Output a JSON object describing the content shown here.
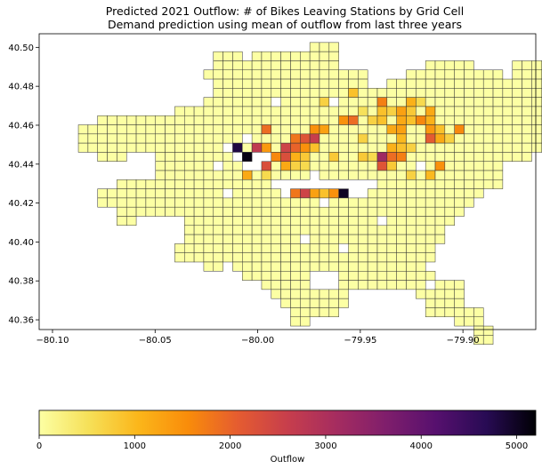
{
  "title_line1": "Predicted 2021 Outflow: # of Bikes Leaving Stations by Grid Cell",
  "title_line2": "Demand prediction using mean of outflow from last three years",
  "x_ticks": [
    "−80.10",
    "−80.05",
    "−80.00",
    "−79.95",
    "−79.90"
  ],
  "x_tick_values": [
    -80.1,
    -80.05,
    -80.0,
    -79.95,
    -79.9
  ],
  "y_ticks": [
    "40.50",
    "40.48",
    "40.46",
    "40.44",
    "40.42",
    "40.40",
    "40.38",
    "40.36"
  ],
  "y_tick_values": [
    40.5,
    40.48,
    40.46,
    40.44,
    40.42,
    40.4,
    40.38,
    40.36
  ],
  "xlim": [
    -80.1065,
    -79.8645
  ],
  "ylim": [
    40.355,
    40.507
  ],
  "colorbar": {
    "label": "Outflow",
    "colormap": "inferno_r",
    "range": [
      0,
      5200
    ],
    "ticks": [
      "0",
      "1000",
      "2000",
      "3000",
      "4000",
      "5000"
    ],
    "tick_values": [
      0,
      1000,
      2000,
      3000,
      4000,
      5000
    ]
  },
  "grid": {
    "cell_size_deg": 0.0047,
    "lon_start": -80.1015,
    "lat_top": 40.5025,
    "rows": [
      {
        "row": 0,
        "spans": [
          [
            27,
            29
          ]
        ]
      },
      {
        "row": 1,
        "spans": [
          [
            17,
            19
          ],
          [
            21,
            29
          ]
        ]
      },
      {
        "row": 2,
        "spans": [
          [
            17,
            29
          ],
          [
            39,
            43
          ],
          [
            48,
            52
          ]
        ]
      },
      {
        "row": 3,
        "spans": [
          [
            16,
            32
          ],
          [
            37,
            46
          ],
          [
            48,
            52
          ]
        ]
      },
      {
        "row": 4,
        "spans": [
          [
            17,
            32
          ],
          [
            35,
            52
          ]
        ]
      },
      {
        "row": 5,
        "spans": [
          [
            17,
            52
          ]
        ]
      },
      {
        "row": 6,
        "spans": [
          [
            16,
            52
          ]
        ]
      },
      {
        "row": 7,
        "spans": [
          [
            13,
            51
          ]
        ]
      },
      {
        "row": 8,
        "spans": [
          [
            5,
            52
          ],
          [
            54,
            55
          ]
        ]
      },
      {
        "row": 9,
        "spans": [
          [
            3,
            56
          ]
        ]
      },
      {
        "row": 10,
        "spans": [
          [
            3,
            56
          ]
        ]
      },
      {
        "row": 11,
        "spans": [
          [
            3,
            54
          ]
        ]
      },
      {
        "row": 12,
        "spans": [
          [
            5,
            7
          ],
          [
            11,
            49
          ]
        ]
      },
      {
        "row": 13,
        "spans": [
          [
            11,
            46
          ]
        ]
      },
      {
        "row": 14,
        "spans": [
          [
            11,
            46
          ]
        ]
      },
      {
        "row": 15,
        "spans": [
          [
            7,
            46
          ]
        ]
      },
      {
        "row": 16,
        "spans": [
          [
            5,
            44
          ]
        ]
      },
      {
        "row": 17,
        "spans": [
          [
            5,
            43
          ]
        ]
      },
      {
        "row": 18,
        "spans": [
          [
            7,
            42
          ]
        ]
      },
      {
        "row": 19,
        "spans": [
          [
            7,
            8
          ],
          [
            14,
            41
          ]
        ]
      },
      {
        "row": 20,
        "spans": [
          [
            14,
            40
          ]
        ]
      },
      {
        "row": 21,
        "spans": [
          [
            14,
            40
          ]
        ]
      },
      {
        "row": 22,
        "spans": [
          [
            13,
            39
          ]
        ]
      },
      {
        "row": 23,
        "spans": [
          [
            13,
            39
          ]
        ]
      },
      {
        "row": 24,
        "spans": [
          [
            16,
            38
          ]
        ]
      },
      {
        "row": 25,
        "spans": [
          [
            20,
            26
          ],
          [
            30,
            39
          ]
        ]
      },
      {
        "row": 26,
        "spans": [
          [
            22,
            26
          ],
          [
            30,
            38
          ],
          [
            40,
            42
          ]
        ]
      },
      {
        "row": 27,
        "spans": [
          [
            23,
            30
          ],
          [
            38,
            42
          ]
        ]
      },
      {
        "row": 28,
        "spans": [
          [
            24,
            30
          ],
          [
            39,
            42
          ]
        ]
      },
      {
        "row": 29,
        "spans": [
          [
            25,
            29
          ],
          [
            39,
            44
          ]
        ]
      },
      {
        "row": 30,
        "spans": [
          [
            25,
            26
          ],
          [
            42,
            44
          ]
        ]
      },
      {
        "row": 31,
        "spans": [
          [
            44,
            45
          ]
        ]
      },
      {
        "row": 32,
        "spans": [
          [
            44,
            45
          ]
        ]
      }
    ],
    "holes": [
      [
        13,
        17
      ],
      [
        14,
        27
      ],
      [
        15,
        23
      ],
      [
        16,
        18
      ],
      [
        17,
        28
      ],
      [
        13,
        38
      ],
      [
        12,
        9
      ],
      [
        19,
        34
      ],
      [
        21,
        26
      ],
      [
        22,
        30
      ],
      [
        24,
        18
      ],
      [
        25,
        27
      ],
      [
        6,
        23
      ],
      [
        6,
        29
      ],
      [
        10,
        20
      ],
      [
        11,
        18
      ],
      [
        12,
        19
      ],
      [
        12,
        21
      ],
      [
        12,
        22
      ],
      [
        13,
        20
      ],
      [
        13,
        21
      ],
      [
        15,
        24
      ],
      [
        15,
        25
      ],
      [
        15,
        26
      ],
      [
        15,
        27
      ],
      [
        15,
        28
      ],
      [
        15,
        29
      ],
      [
        15,
        30
      ],
      [
        15,
        31
      ],
      [
        15,
        32
      ],
      [
        15,
        33
      ],
      [
        16,
        24
      ],
      [
        16,
        31
      ],
      [
        16,
        32
      ]
    ],
    "values": [
      [
        5,
        31,
        900
      ],
      [
        6,
        28,
        700
      ],
      [
        6,
        34,
        1700
      ],
      [
        6,
        37,
        1100
      ],
      [
        6,
        38,
        600
      ],
      [
        7,
        32,
        500
      ],
      [
        7,
        34,
        900
      ],
      [
        7,
        35,
        700
      ],
      [
        7,
        36,
        1300
      ],
      [
        7,
        37,
        800
      ],
      [
        7,
        39,
        1200
      ],
      [
        8,
        30,
        1500
      ],
      [
        8,
        31,
        1900
      ],
      [
        8,
        33,
        700
      ],
      [
        8,
        34,
        900
      ],
      [
        8,
        36,
        1200
      ],
      [
        8,
        37,
        900
      ],
      [
        8,
        38,
        1600
      ],
      [
        8,
        39,
        1100
      ],
      [
        9,
        22,
        1900
      ],
      [
        9,
        27,
        1500
      ],
      [
        9,
        28,
        1300
      ],
      [
        9,
        35,
        1200
      ],
      [
        9,
        36,
        1300
      ],
      [
        9,
        39,
        1400
      ],
      [
        9,
        40,
        900
      ],
      [
        9,
        42,
        1600
      ],
      [
        10,
        20,
        600
      ],
      [
        10,
        25,
        1800
      ],
      [
        10,
        26,
        2200
      ],
      [
        10,
        27,
        2600
      ],
      [
        10,
        32,
        700
      ],
      [
        10,
        36,
        1000
      ],
      [
        10,
        39,
        2100
      ],
      [
        10,
        40,
        1200
      ],
      [
        10,
        41,
        700
      ],
      [
        11,
        19,
        4800
      ],
      [
        11,
        21,
        2700
      ],
      [
        11,
        22,
        1400
      ],
      [
        11,
        24,
        2500
      ],
      [
        11,
        25,
        2000
      ],
      [
        11,
        26,
        1500
      ],
      [
        11,
        27,
        900
      ],
      [
        11,
        35,
        1100
      ],
      [
        11,
        36,
        900
      ],
      [
        11,
        37,
        700
      ],
      [
        12,
        20,
        5100
      ],
      [
        12,
        21,
        5200
      ],
      [
        12,
        22,
        3000
      ],
      [
        12,
        23,
        1600
      ],
      [
        12,
        24,
        2300
      ],
      [
        12,
        25,
        1100
      ],
      [
        12,
        26,
        800
      ],
      [
        12,
        29,
        800
      ],
      [
        12,
        32,
        800
      ],
      [
        12,
        33,
        600
      ],
      [
        12,
        34,
        3200
      ],
      [
        12,
        35,
        1900
      ],
      [
        12,
        36,
        1700
      ],
      [
        13,
        21,
        3000
      ],
      [
        13,
        22,
        2300
      ],
      [
        13,
        24,
        1200
      ],
      [
        13,
        25,
        700
      ],
      [
        13,
        26,
        600
      ],
      [
        13,
        34,
        2200
      ],
      [
        13,
        35,
        800
      ],
      [
        13,
        40,
        1500
      ],
      [
        14,
        20,
        1200
      ],
      [
        14,
        22,
        600
      ],
      [
        14,
        37,
        700
      ],
      [
        14,
        39,
        1000
      ],
      [
        16,
        25,
        1800
      ],
      [
        16,
        26,
        2500
      ],
      [
        16,
        27,
        1300
      ],
      [
        16,
        28,
        900
      ],
      [
        16,
        29,
        1500
      ],
      [
        16,
        30,
        5000
      ],
      [
        16,
        31,
        900
      ]
    ]
  }
}
